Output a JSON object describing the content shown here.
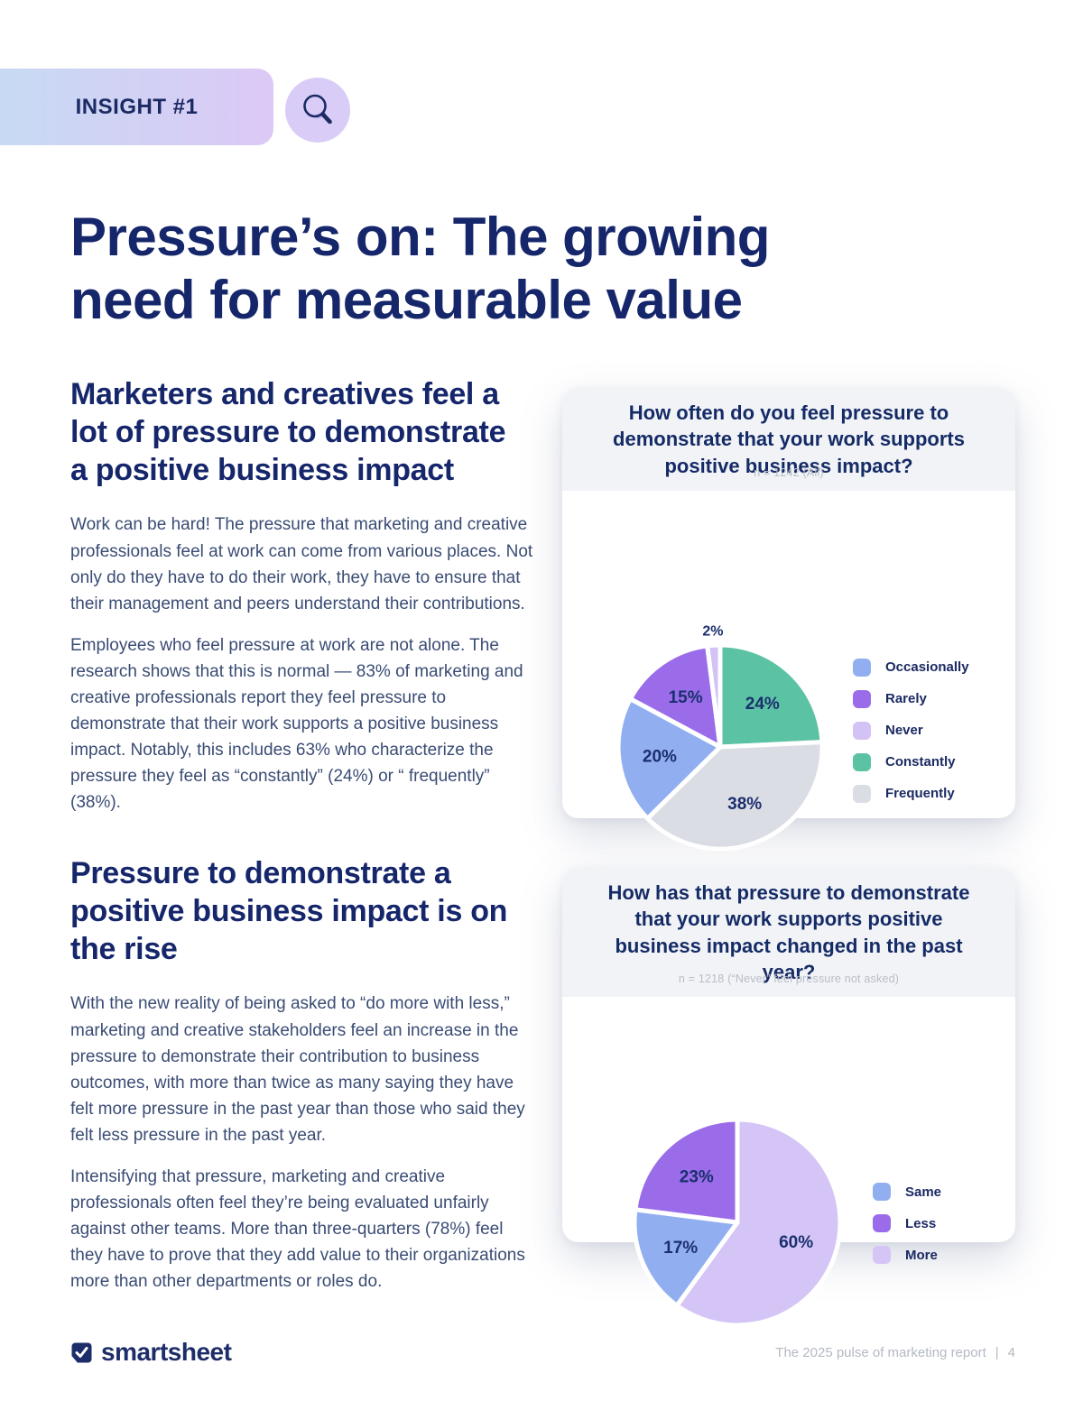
{
  "banner": {
    "label": "INSIGHT #1",
    "icon": "magnifier-icon"
  },
  "page_title": "Pressure’s on: The growing need for measurable value",
  "sections": [
    {
      "heading": "Marketers and creatives feel a lot of pressure to demonstrate a positive business impact",
      "paragraphs": [
        "Work can be hard! The pressure that marketing and creative professionals feel at work can come from various places. Not only do they have to do their work, they have to ensure that their management and peers understand their contributions.",
        "Employees who feel pressure at work are not alone. The research shows that this is normal — 83% of marketing and creative professionals report they feel pressure to demonstrate that their work supports a positive business impact. Notably, this includes 63% who characterize the pressure they feel as “constantly” (24%) or “ frequently” (38%)."
      ]
    },
    {
      "heading": "Pressure to demonstrate a positive business impact is on the rise",
      "paragraphs": [
        "With the new reality of being asked to “do more with less,” marketing and creative stakeholders feel an increase in the pressure to demonstrate their contribution to business outcomes, with more than twice as many saying they have felt more pressure in the past year than those who said they felt less pressure in the past year.",
        "Intensifying that pressure, marketing and creative professionals often feel they’re being evaluated unfairly against other teams. More than three-quarters (78%) feel they have to prove that they add value to their organizations more than other departments or roles do."
      ]
    }
  ],
  "chart_data": [
    {
      "type": "pie",
      "title": "How often do you feel pressure to demonstrate that your work supports positive business impact?",
      "footnote": "n = 1242 (All)",
      "start_angle_deg": 0,
      "legend_position": "right",
      "slices": [
        {
          "label": "Constantly",
          "value": 24,
          "color": "#5bc2a4"
        },
        {
          "label": "Frequently",
          "value": 38,
          "color": "#dbdde5"
        },
        {
          "label": "Occasionally",
          "value": 20,
          "color": "#91aff0"
        },
        {
          "label": "Rarely",
          "value": 15,
          "color": "#9a6ce9"
        },
        {
          "label": "Never",
          "value": 2,
          "color": "#d3c2f4"
        }
      ],
      "legend_order": [
        "Occasionally",
        "Rarely",
        "Never",
        "Constantly",
        "Frequently"
      ]
    },
    {
      "type": "pie",
      "title": "How has that pressure to demonstrate that your work supports positive business impact changed in the past year?",
      "footnote": "n = 1218 (“Never” feel pressure not asked)",
      "start_angle_deg": 0,
      "legend_position": "right",
      "slices": [
        {
          "label": "More",
          "value": 60,
          "color": "#d5c5f6"
        },
        {
          "label": "Same",
          "value": 17,
          "color": "#91aff0"
        },
        {
          "label": "Less",
          "value": 23,
          "color": "#9a6ce9"
        }
      ],
      "legend_order": [
        "Same",
        "Less",
        "More"
      ]
    }
  ],
  "footer": {
    "brand": "smartsheet",
    "brand_icon": "checkmark-square-icon",
    "report_title": "The 2025 pulse of marketing report",
    "separator": "|",
    "page_number": "4"
  },
  "theme": {
    "navy_heading": "#15266b",
    "body_text": "#3a4c74",
    "pill_gradient": [
      "#c7daf3",
      "#dcc9f6"
    ],
    "badge_bg": "#d9ccf7",
    "card_header_bg": "#f1f3f7",
    "footnote_gray": "#b9bdc6"
  }
}
